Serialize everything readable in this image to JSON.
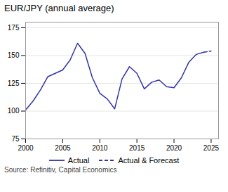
{
  "chart_data": {
    "type": "line",
    "title": "EUR/JPY (annual average)",
    "annotations": [
      "Source: Refinitiv, Capital Economics"
    ],
    "series": [
      {
        "name": "Actual",
        "color": "#3333aa",
        "line_style": "solid",
        "x": [
          2000,
          2001,
          2002,
          2003,
          2004,
          2005,
          2006,
          2007,
          2008,
          2009,
          2010,
          2011,
          2012,
          2013,
          2014,
          2015,
          2016,
          2017,
          2018,
          2019,
          2020,
          2021,
          2022,
          2023,
          2024
        ],
        "values": [
          101,
          109,
          119,
          131,
          134,
          137,
          146,
          161,
          152,
          130,
          116,
          111,
          102,
          129,
          140,
          134,
          120,
          126,
          128,
          122,
          121,
          130,
          144,
          151,
          153
        ]
      },
      {
        "name": "Actual & Forecast",
        "color": "#3333aa",
        "line_style": "dashed",
        "x": [
          2024,
          2025
        ],
        "values": [
          153,
          154
        ]
      }
    ],
    "xlim": [
      2000,
      2026
    ],
    "xticks": [
      2000,
      2005,
      2010,
      2015,
      2020,
      2025
    ],
    "ylim": [
      75,
      180
    ],
    "yticks": [
      75,
      100,
      125,
      150,
      175
    ],
    "grid": "y",
    "legend": "bottom"
  }
}
